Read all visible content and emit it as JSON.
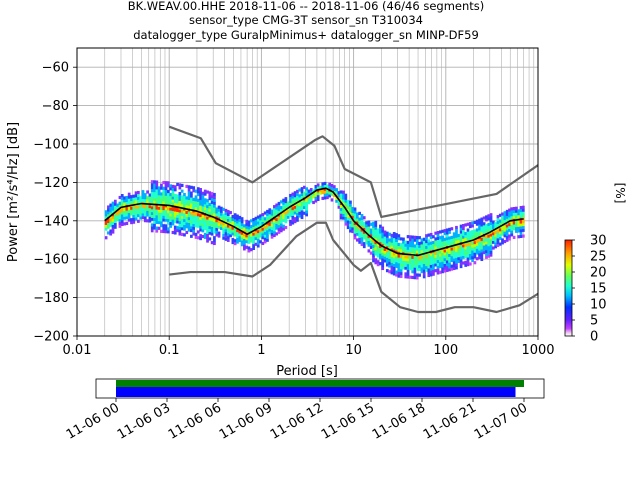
{
  "title_lines": [
    "BK.WEAV.00.HHE   2018-11-06 -- 2018-11-06  (46/46 segments)",
    "sensor_type CMG-3T sensor_sn T310034",
    "datalogger_type GuralpMinimus+ datalogger_sn MINP-DF59"
  ],
  "colorbar": {
    "label": "[%]",
    "ticks": [
      "0",
      "5",
      "10",
      "15",
      "20",
      "25",
      "30"
    ]
  },
  "timeline": {
    "ticks": [
      "11-06 00",
      "11-06 03",
      "11-06 06",
      "11-06 09",
      "11-06 12",
      "11-06 15",
      "11-06 18",
      "11-06 21",
      "11-07 00"
    ],
    "green_range_hours": [
      0,
      24
    ],
    "blue_range_hours": [
      0,
      23.5
    ]
  },
  "chart_data": {
    "type": "heatmap",
    "xlabel": "Period [s]",
    "ylabel": "Power [m²/s⁴/Hz] [dB]",
    "x_scale": "log",
    "xlim": [
      0.01,
      1000
    ],
    "ylim": [
      -200,
      -50
    ],
    "x_tick_labels": [
      "0.01",
      "0.1",
      "1",
      "10",
      "100",
      "1000"
    ],
    "y_ticks": [
      -60,
      -80,
      -100,
      -120,
      -140,
      -160,
      -180,
      -200
    ],
    "grid": true,
    "series": [
      {
        "name": "noise_model_upper",
        "color": "#666666",
        "points": [
          [
            0.1,
            -91
          ],
          [
            0.22,
            -97
          ],
          [
            0.32,
            -110
          ],
          [
            0.8,
            -120
          ],
          [
            3.8,
            -98
          ],
          [
            4.6,
            -96
          ],
          [
            6.2,
            -101
          ],
          [
            8,
            -113
          ],
          [
            15.4,
            -120
          ],
          [
            20,
            -138
          ],
          [
            355,
            -126
          ],
          [
            1000,
            -111
          ]
        ]
      },
      {
        "name": "noise_model_lower",
        "color": "#666666",
        "points": [
          [
            0.1,
            -168
          ],
          [
            0.17,
            -166.7
          ],
          [
            0.4,
            -166.7
          ],
          [
            0.8,
            -169
          ],
          [
            1.24,
            -163
          ],
          [
            2.4,
            -148
          ],
          [
            4,
            -141
          ],
          [
            5,
            -141
          ],
          [
            6,
            -150
          ],
          [
            10,
            -163
          ],
          [
            12,
            -166
          ],
          [
            15.4,
            -162
          ],
          [
            20,
            -177
          ],
          [
            32,
            -185
          ],
          [
            50,
            -187.5
          ],
          [
            78,
            -187.5
          ],
          [
            125,
            -185
          ],
          [
            200,
            -185
          ],
          [
            355,
            -187.5
          ],
          [
            630,
            -184
          ],
          [
            1000,
            -178
          ]
        ]
      },
      {
        "name": "mean_psd",
        "color": "#000000",
        "points": [
          [
            0.02,
            -140
          ],
          [
            0.03,
            -133
          ],
          [
            0.05,
            -131
          ],
          [
            0.1,
            -132
          ],
          [
            0.2,
            -135
          ],
          [
            0.3,
            -138
          ],
          [
            0.5,
            -143
          ],
          [
            0.7,
            -147
          ],
          [
            1,
            -143
          ],
          [
            2,
            -133
          ],
          [
            3,
            -128
          ],
          [
            4,
            -124
          ],
          [
            5,
            -123
          ],
          [
            6,
            -125
          ],
          [
            8,
            -133
          ],
          [
            10,
            -140
          ],
          [
            15,
            -148
          ],
          [
            20,
            -153
          ],
          [
            30,
            -157
          ],
          [
            50,
            -158
          ],
          [
            100,
            -154
          ],
          [
            200,
            -150
          ],
          [
            300,
            -146
          ],
          [
            500,
            -140
          ],
          [
            700,
            -139
          ]
        ]
      }
    ]
  }
}
